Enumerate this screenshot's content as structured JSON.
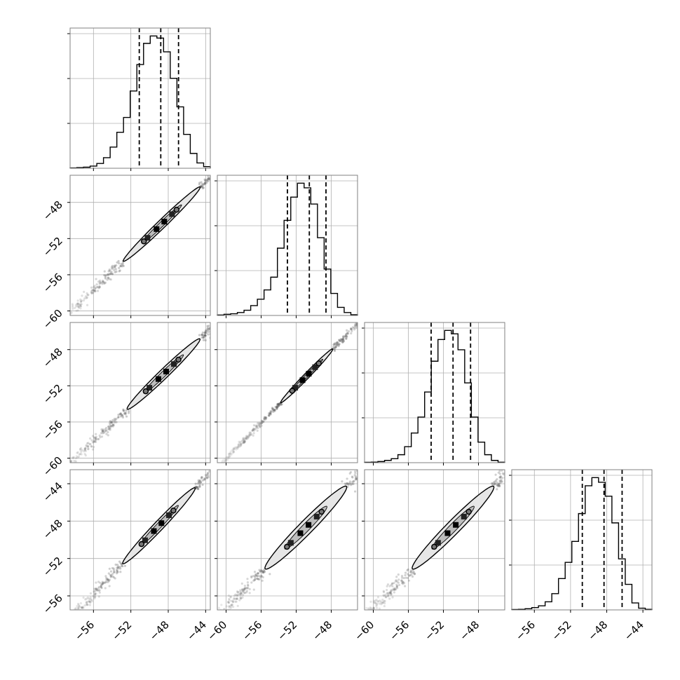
{
  "chart_data": {
    "type": "corner",
    "n_params": 4,
    "grid": true,
    "colors": {
      "line": "#000000",
      "grid": "#b0b0b0",
      "frame": "#808080",
      "scatter": "#555555",
      "contour_fill": "#e6e6e6"
    },
    "diagonal": [
      {
        "axis_range": [
          -58.5,
          -43.5
        ],
        "quantiles": [
          -51.1,
          -48.8,
          -46.9
        ],
        "histogram": [
          0.3,
          0.6,
          1.0,
          2.0,
          4.5,
          10,
          20,
          34,
          48,
          73,
          98,
          118,
          125,
          123,
          110,
          85,
          58,
          32,
          14,
          5,
          1.5
        ]
      },
      {
        "axis_range": [
          -61.0,
          -45.0
        ],
        "quantiles": [
          -53.0,
          -50.5,
          -48.6
        ],
        "histogram": [
          0.4,
          1.0,
          1.5,
          2.5,
          4.5,
          8.5,
          14,
          22,
          33,
          58,
          82,
          102,
          114,
          110,
          96,
          67,
          40,
          19,
          7,
          2.5,
          0.6
        ]
      },
      {
        "axis_range": [
          -61.0,
          -45.0
        ],
        "quantiles": [
          -53.4,
          -50.9,
          -48.9
        ],
        "histogram": [
          0.3,
          0.5,
          1.0,
          2.0,
          3.5,
          7,
          14,
          26,
          40,
          62,
          89,
          108,
          116,
          113,
          99,
          70,
          40,
          18,
          7,
          2,
          0.4
        ]
      },
      {
        "axis_range": [
          -58.5,
          -43.0
        ],
        "quantiles": [
          -50.7,
          -48.3,
          -46.3
        ],
        "histogram": [
          0.3,
          0.5,
          1.0,
          2.0,
          3.5,
          7,
          14,
          27,
          41,
          59,
          83,
          107,
          114,
          110,
          98,
          75,
          44,
          22,
          6,
          1.5,
          0.5
        ]
      }
    ],
    "pairs": [
      {
        "row": 1,
        "col": 0,
        "x_range": [
          -58.5,
          -43.5
        ],
        "y_range": [
          -60.5,
          -45.0
        ],
        "mean": [
          -48.7,
          -50.4
        ],
        "slope": 1.0,
        "half_length": 5.8,
        "half_width": 0.45,
        "core_half_length": 3.0,
        "tail_low": 11.0,
        "tail_high": 4.0
      },
      {
        "row": 2,
        "col": 0,
        "x_range": [
          -58.5,
          -43.5
        ],
        "y_range": [
          -60.5,
          -45.0
        ],
        "mean": [
          -48.5,
          -50.7
        ],
        "slope": 1.0,
        "half_length": 5.5,
        "half_width": 0.5,
        "core_half_length": 3.0,
        "tail_low": 11.0,
        "tail_high": 3.5
      },
      {
        "row": 2,
        "col": 1,
        "x_range": [
          -61.0,
          -45.0
        ],
        "y_range": [
          -60.5,
          -45.0
        ],
        "mean": [
          -50.8,
          -50.9
        ],
        "slope": 1.0,
        "half_length": 4.2,
        "half_width": 0.3,
        "core_half_length": 2.6,
        "tail_low": 9.5,
        "tail_high": 4.0
      },
      {
        "row": 3,
        "col": 0,
        "x_range": [
          -58.5,
          -43.5
        ],
        "y_range": [
          -57.5,
          -42.5
        ],
        "mean": [
          -49.0,
          -48.5
        ],
        "slope": 1.05,
        "half_length": 5.6,
        "half_width": 0.5,
        "core_half_length": 3.0,
        "tail_low": 9.5,
        "tail_high": 3.5
      },
      {
        "row": 3,
        "col": 1,
        "x_range": [
          -61.0,
          -45.0
        ],
        "y_range": [
          -57.5,
          -42.5
        ],
        "mean": [
          -50.9,
          -48.7
        ],
        "slope": 0.95,
        "half_length": 6.4,
        "half_width": 0.75,
        "core_half_length": 3.3,
        "tail_low": 9.0,
        "tail_high": 3.5
      },
      {
        "row": 3,
        "col": 2,
        "x_range": [
          -61.0,
          -45.0
        ],
        "y_range": [
          -57.5,
          -42.5
        ],
        "mean": [
          -50.9,
          -48.7
        ],
        "slope": 0.95,
        "half_length": 6.4,
        "half_width": 0.75,
        "core_half_length": 3.3,
        "tail_low": 9.0,
        "tail_high": 3.5
      }
    ],
    "x_ticks": [
      {
        "col": 0,
        "ticks": [
          -56,
          -52,
          -48,
          -44
        ],
        "labels": [
          "−56",
          "−52",
          "−48",
          "−44"
        ]
      },
      {
        "col": 1,
        "ticks": [
          -60,
          -56,
          -52,
          -48
        ],
        "labels": [
          "−60",
          "−56",
          "−52",
          "−48"
        ]
      },
      {
        "col": 2,
        "ticks": [
          -60,
          -56,
          -52,
          -48
        ],
        "labels": [
          "−60",
          "−56",
          "−52",
          "−48"
        ]
      },
      {
        "col": 3,
        "ticks": [
          -56,
          -52,
          -48,
          -44
        ],
        "labels": [
          "−56",
          "−52",
          "−48",
          "−44"
        ]
      }
    ],
    "y_ticks": [
      {
        "row": 1,
        "ticks": [
          -60,
          -56,
          -52,
          -48
        ],
        "labels": [
          "−60",
          "−56",
          "−52",
          "−48"
        ]
      },
      {
        "row": 2,
        "ticks": [
          -60,
          -56,
          -52,
          -48
        ],
        "labels": [
          "−60",
          "−56",
          "−52",
          "−48"
        ]
      },
      {
        "row": 3,
        "ticks": [
          -56,
          -52,
          -48,
          -44
        ],
        "labels": [
          "−56",
          "−52",
          "−48",
          "−44"
        ]
      }
    ]
  }
}
